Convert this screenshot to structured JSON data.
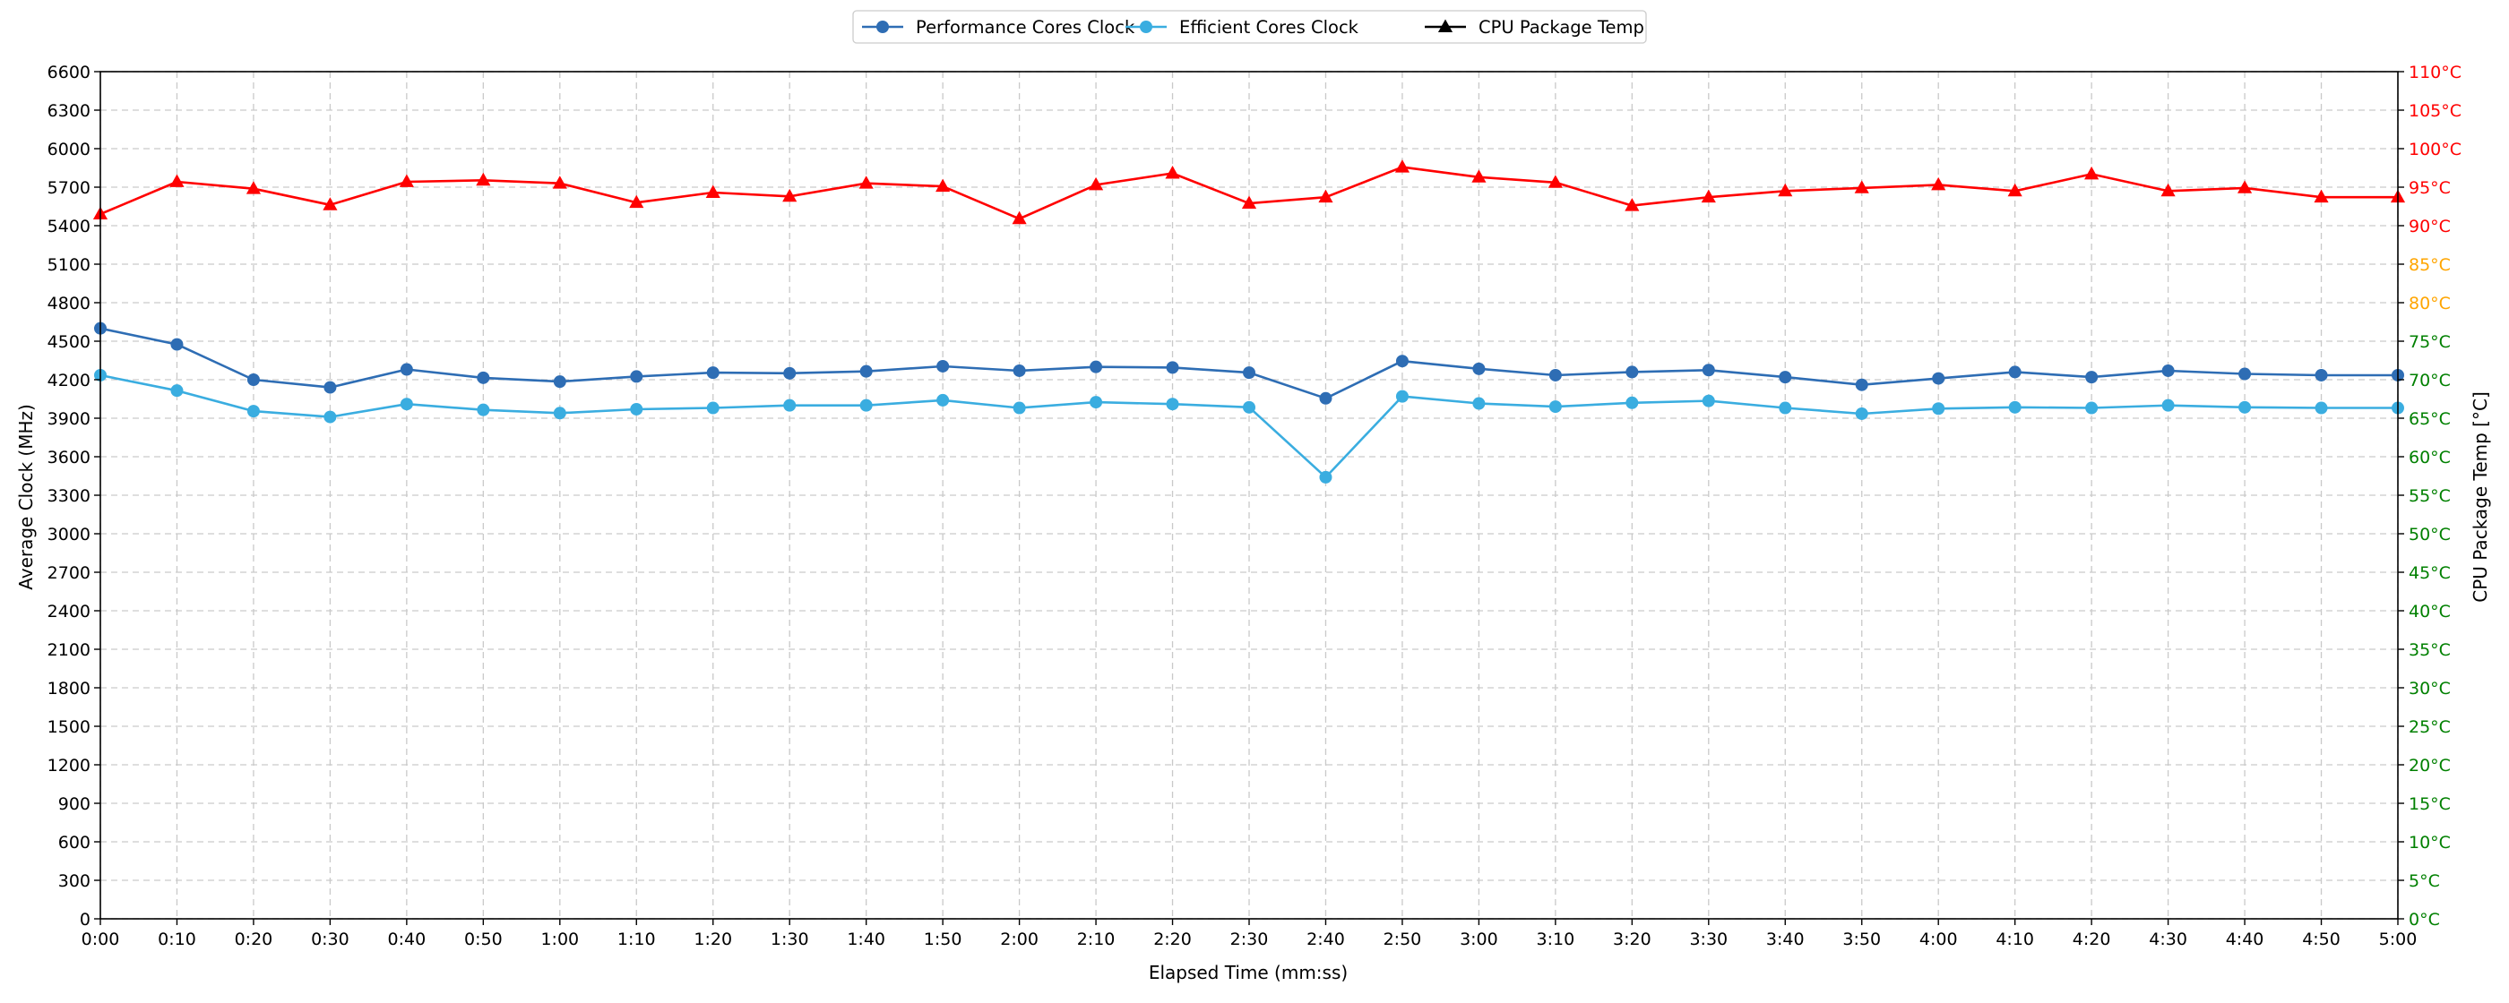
{
  "chart_data": {
    "type": "line",
    "xlabel": "Elapsed Time (mm:ss)",
    "ylabel": "Average Clock (MHz)",
    "y2label": "CPU Package Temp [°C]",
    "ylim": [
      0,
      6600
    ],
    "y2lim": [
      0,
      110
    ],
    "grid": true,
    "legend_position": "top-center",
    "x_ticks": [
      "0:00",
      "0:10",
      "0:20",
      "0:30",
      "0:40",
      "0:50",
      "1:00",
      "1:10",
      "1:20",
      "1:30",
      "1:40",
      "1:50",
      "2:00",
      "2:10",
      "2:20",
      "2:30",
      "2:40",
      "2:50",
      "3:00",
      "3:10",
      "3:20",
      "3:30",
      "3:40",
      "3:50",
      "4:00",
      "4:10",
      "4:20",
      "4:30",
      "4:40",
      "4:50",
      "5:00"
    ],
    "y_ticks": [
      "0",
      "300",
      "600",
      "900",
      "1200",
      "1500",
      "1800",
      "2100",
      "2400",
      "2700",
      "3000",
      "3300",
      "3600",
      "3900",
      "4200",
      "4500",
      "4800",
      "5100",
      "5400",
      "5700",
      "6000",
      "6300",
      "6600"
    ],
    "y2_ticks": [
      {
        "label": "0°C",
        "color": "#008000"
      },
      {
        "label": "5°C",
        "color": "#008000"
      },
      {
        "label": "10°C",
        "color": "#008000"
      },
      {
        "label": "15°C",
        "color": "#008000"
      },
      {
        "label": "20°C",
        "color": "#008000"
      },
      {
        "label": "25°C",
        "color": "#008000"
      },
      {
        "label": "30°C",
        "color": "#008000"
      },
      {
        "label": "35°C",
        "color": "#008000"
      },
      {
        "label": "40°C",
        "color": "#008000"
      },
      {
        "label": "45°C",
        "color": "#008000"
      },
      {
        "label": "50°C",
        "color": "#008000"
      },
      {
        "label": "55°C",
        "color": "#008000"
      },
      {
        "label": "60°C",
        "color": "#008000"
      },
      {
        "label": "65°C",
        "color": "#008000"
      },
      {
        "label": "70°C",
        "color": "#008000"
      },
      {
        "label": "75°C",
        "color": "#008000"
      },
      {
        "label": "80°C",
        "color": "#FFA500"
      },
      {
        "label": "85°C",
        "color": "#FFA500"
      },
      {
        "label": "90°C",
        "color": "#FF0000"
      },
      {
        "label": "95°C",
        "color": "#FF0000"
      },
      {
        "label": "100°C",
        "color": "#FF0000"
      },
      {
        "label": "105°C",
        "color": "#FF0000"
      },
      {
        "label": "110°C",
        "color": "#FF0000"
      }
    ],
    "series": [
      {
        "name": "Performance Cores Clock",
        "axis": "left",
        "color": "#2E6DB4",
        "marker": "circle",
        "values": [
          4600,
          4475,
          4200,
          4140,
          4280,
          4215,
          4185,
          4225,
          4255,
          4250,
          4265,
          4305,
          4270,
          4300,
          4295,
          4255,
          4055,
          4345,
          4285,
          4235,
          4260,
          4275,
          4220,
          4160,
          4210,
          4260,
          4220,
          4270,
          4245,
          4235,
          4235
        ]
      },
      {
        "name": "Efficient Cores Clock",
        "axis": "left",
        "color": "#3AADE0",
        "marker": "circle",
        "values": [
          4235,
          4115,
          3955,
          3910,
          4010,
          3965,
          3940,
          3970,
          3980,
          4000,
          4000,
          4040,
          3980,
          4025,
          4010,
          3985,
          3440,
          4070,
          4015,
          3990,
          4020,
          4035,
          3980,
          3935,
          3975,
          3985,
          3980,
          4000,
          3985,
          3980,
          3980
        ]
      },
      {
        "name": "CPU Package Temp",
        "axis": "right",
        "color": "#FF0000",
        "legend_color": "#000000",
        "marker": "triangle",
        "values": [
          91.5,
          95.7,
          94.8,
          92.7,
          95.7,
          95.9,
          95.5,
          93.0,
          94.3,
          93.8,
          95.5,
          95.1,
          90.9,
          95.3,
          96.8,
          92.9,
          93.7,
          97.6,
          96.3,
          95.6,
          92.6,
          93.7,
          94.5,
          94.9,
          95.3,
          94.5,
          96.7,
          94.5,
          94.9,
          93.7,
          93.7
        ]
      }
    ]
  }
}
